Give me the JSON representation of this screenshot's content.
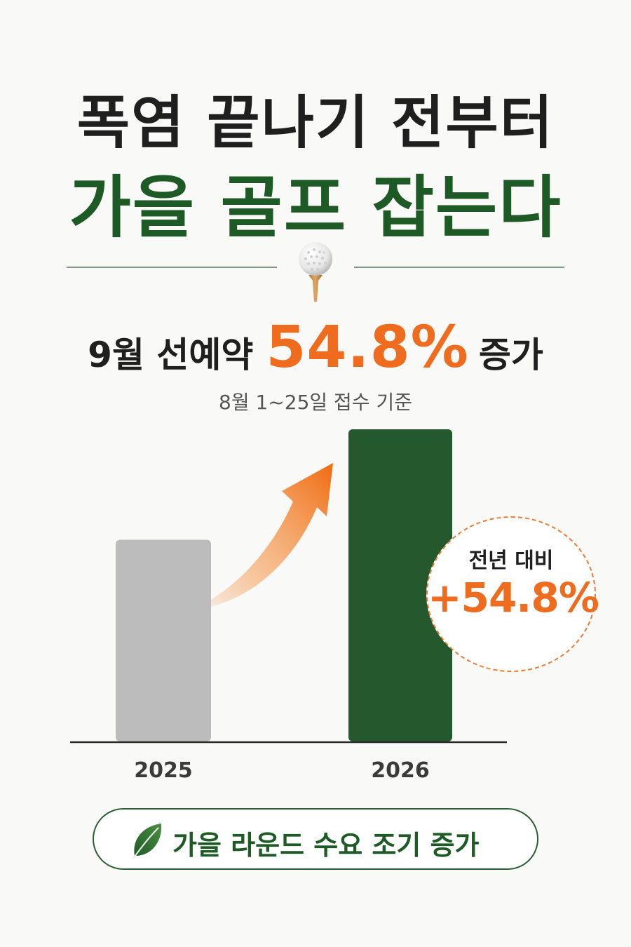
{
  "title": {
    "line1": "폭염 끝나기 전부터",
    "line2": "가을 골프 잡는다"
  },
  "headline": {
    "prefix": "9월 선예약",
    "value": "54.8%",
    "suffix": "증가"
  },
  "subnote": "8월 1~25일 접수 기준",
  "badge": {
    "label": "전년 대비",
    "value": "+54.8%"
  },
  "footer": {
    "pill_text": "가을 라운드 수요 조기 증가"
  },
  "icons": [
    "golf-ball-icon",
    "arrow-up-icon",
    "leaf-icon"
  ],
  "colors": {
    "green": "#1e5a26",
    "orange": "#ef6c1e",
    "gray_bar": "#bcbcbc",
    "green_bar": "#24592e"
  },
  "chart_data": {
    "type": "bar",
    "categories": [
      "2025",
      "2026"
    ],
    "values": [
      100,
      154.8
    ],
    "title": "",
    "xlabel": "",
    "ylabel": "",
    "ylim": [
      0,
      154.8
    ],
    "grid": false,
    "legend": "none"
  }
}
